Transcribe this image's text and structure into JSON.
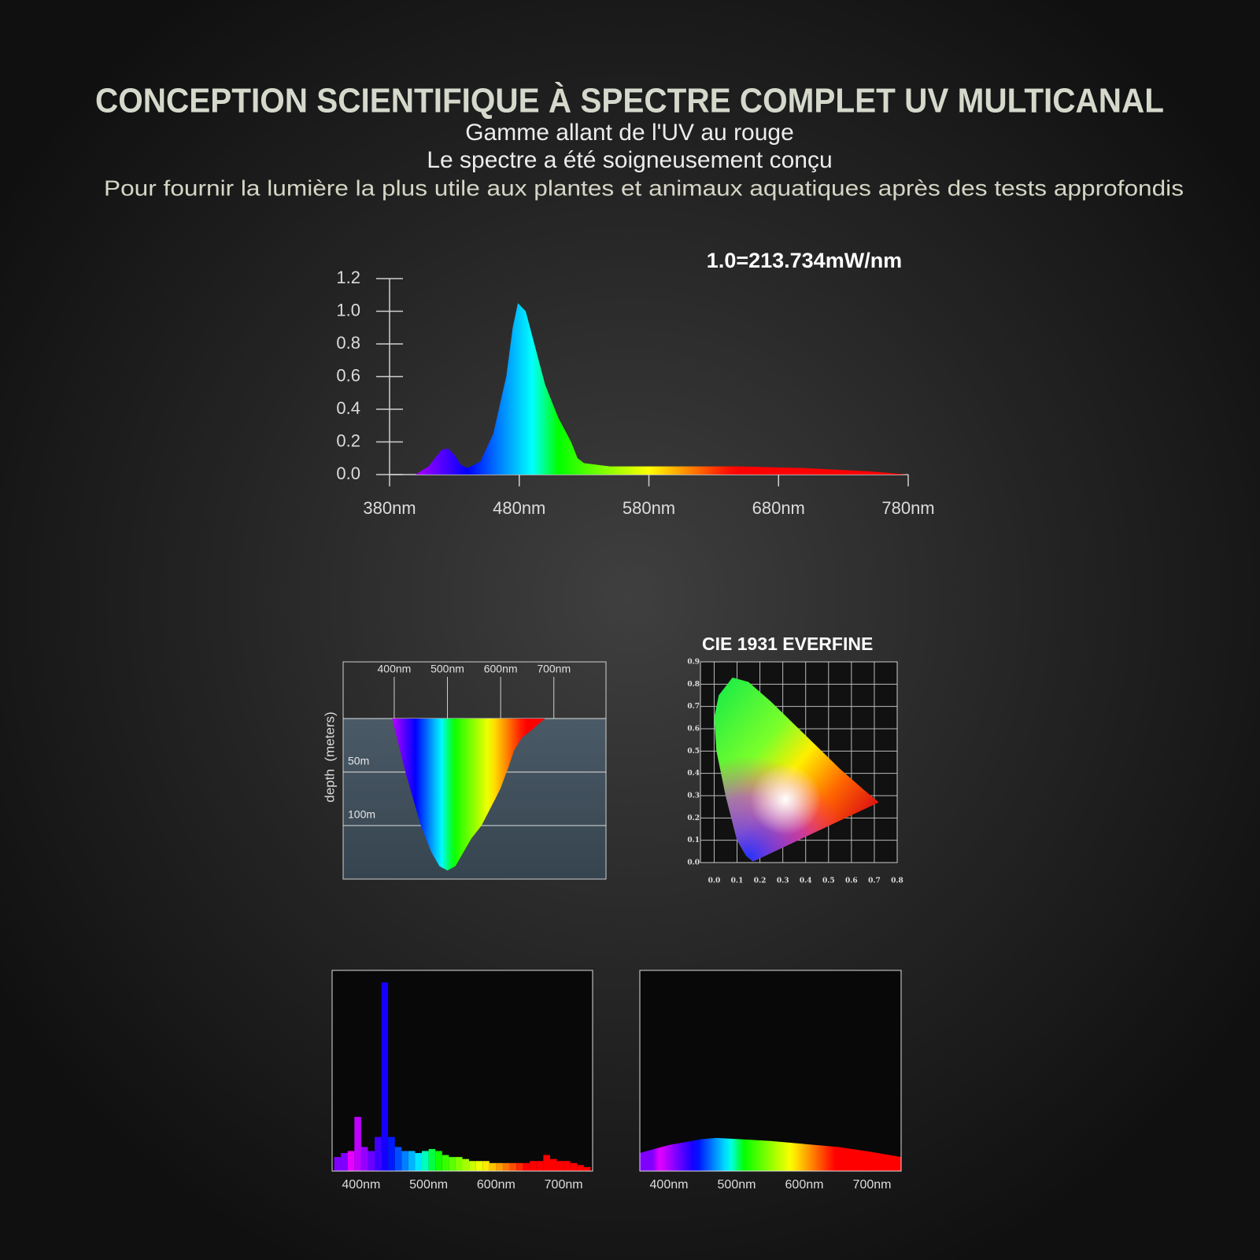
{
  "header": {
    "title": "CONCEPTION SCIENTIFIQUE À SPECTRE COMPLET UV MULTICANAL",
    "lines": [
      "Gamme allant de l'UV au rouge",
      "Le spectre a été soigneusement conçu",
      "Pour fournir la lumière la plus utile aux plantes et animaux aquatiques après des tests approfondis"
    ]
  },
  "chart_data": [
    {
      "type": "area",
      "annotation": "1.0=213.734mW/nm",
      "x": [
        400,
        410,
        420,
        425,
        430,
        435,
        440,
        450,
        460,
        470,
        475,
        479,
        485,
        490,
        500,
        510,
        520,
        525,
        530,
        550,
        600,
        650,
        700,
        750,
        780
      ],
      "values": [
        0,
        0.05,
        0.15,
        0.16,
        0.12,
        0.06,
        0.04,
        0.08,
        0.25,
        0.6,
        0.9,
        1.05,
        1.0,
        0.85,
        0.55,
        0.35,
        0.2,
        0.1,
        0.07,
        0.05,
        0.05,
        0.05,
        0.04,
        0.02,
        0
      ],
      "xlim": [
        380,
        780
      ],
      "ylim": [
        0,
        1.2
      ],
      "xticks": [
        {
          "value": 380,
          "label": "380nm"
        },
        {
          "value": 480,
          "label": "480nm"
        },
        {
          "value": 580,
          "label": "580nm"
        },
        {
          "value": 680,
          "label": "680nm"
        },
        {
          "value": 780,
          "label": "780nm"
        }
      ],
      "yticks": [
        {
          "value": 0,
          "label": "0.0"
        },
        0.2,
        0.4,
        0.6,
        0.8,
        {
          "value": 1,
          "label": "1.0"
        },
        1.2
      ]
    },
    {
      "type": "area",
      "ylabel": "depth  (meters)",
      "x": [
        396,
        421,
        450,
        470,
        485,
        500,
        515,
        530,
        545,
        564,
        590,
        600,
        615,
        625,
        640,
        660,
        683
      ],
      "values": [
        0,
        50,
        100,
        125,
        138,
        142,
        138,
        125,
        112,
        100,
        75,
        65,
        45,
        30,
        18,
        10,
        0
      ],
      "xlim": [
        304,
        798
      ],
      "ylim": [
        150,
        0
      ],
      "xticks": [
        {
          "value": 400,
          "label": "400nm"
        },
        {
          "value": 500,
          "label": "500nm"
        },
        {
          "value": 600,
          "label": "600nm"
        },
        {
          "value": 700,
          "label": "700nm"
        }
      ],
      "yticks": [
        {
          "value": 50,
          "label": "50m"
        },
        {
          "value": 100,
          "label": "100m"
        }
      ]
    },
    {
      "type": "polygon",
      "title": "CIE 1931 EVERFINE",
      "grid": true,
      "x": [
        0.17,
        0.14,
        0.1,
        0.05,
        0.01,
        0.0,
        0.02,
        0.08,
        0.15,
        0.25,
        0.35,
        0.45,
        0.55,
        0.65,
        0.72
      ],
      "values": [
        0.005,
        0.03,
        0.1,
        0.3,
        0.5,
        0.65,
        0.75,
        0.83,
        0.81,
        0.72,
        0.62,
        0.52,
        0.42,
        0.33,
        0.27
      ],
      "xlim": [
        -0.06,
        0.8
      ],
      "ylim": [
        0,
        0.9
      ],
      "xticks": [
        {
          "value": 0,
          "label": "0.0"
        },
        0.1,
        0.2,
        0.3,
        0.4,
        0.5,
        0.6,
        0.7,
        0.8
      ],
      "yticks": [
        {
          "value": 0,
          "label": "0.0"
        },
        0.1,
        0.2,
        0.3,
        0.4,
        0.5,
        0.6,
        0.7,
        0.8,
        0.9
      ]
    },
    {
      "type": "histogram",
      "bins": [
        360,
        370,
        380,
        390,
        400,
        410,
        420,
        430,
        440,
        450,
        460,
        470,
        480,
        490,
        500,
        510,
        520,
        530,
        540,
        550,
        560,
        570,
        580,
        590,
        600,
        610,
        620,
        630,
        640,
        650,
        660,
        670,
        680,
        690,
        700,
        710,
        720,
        730,
        740
      ],
      "values": [
        0.07,
        0.09,
        0.1,
        0.27,
        0.12,
        0.1,
        0.17,
        0.94,
        0.17,
        0.12,
        0.1,
        0.1,
        0.09,
        0.1,
        0.11,
        0.1,
        0.08,
        0.07,
        0.07,
        0.06,
        0.05,
        0.05,
        0.05,
        0.04,
        0.04,
        0.04,
        0.04,
        0.04,
        0.04,
        0.05,
        0.05,
        0.08,
        0.06,
        0.05,
        0.05,
        0.04,
        0.03,
        0.02
      ],
      "xlim": [
        357,
        743
      ],
      "ylim": [
        0,
        1
      ],
      "xticks": [
        {
          "value": 400,
          "label": "400nm"
        },
        {
          "value": 500,
          "label": "500nm"
        },
        {
          "value": 600,
          "label": "600nm"
        },
        {
          "value": 700,
          "label": "700nm"
        }
      ]
    },
    {
      "type": "area",
      "x": [
        357,
        400,
        450,
        470,
        500,
        550,
        600,
        650,
        700,
        743
      ],
      "values": [
        0.09,
        0.13,
        0.16,
        0.165,
        0.16,
        0.15,
        0.135,
        0.12,
        0.095,
        0.07
      ],
      "xlim": [
        357,
        743
      ],
      "ylim": [
        0,
        1
      ],
      "xticks": [
        {
          "value": 400,
          "label": "400nm"
        },
        {
          "value": 500,
          "label": "500nm"
        },
        {
          "value": 600,
          "label": "600nm"
        },
        {
          "value": 700,
          "label": "700nm"
        }
      ]
    }
  ]
}
